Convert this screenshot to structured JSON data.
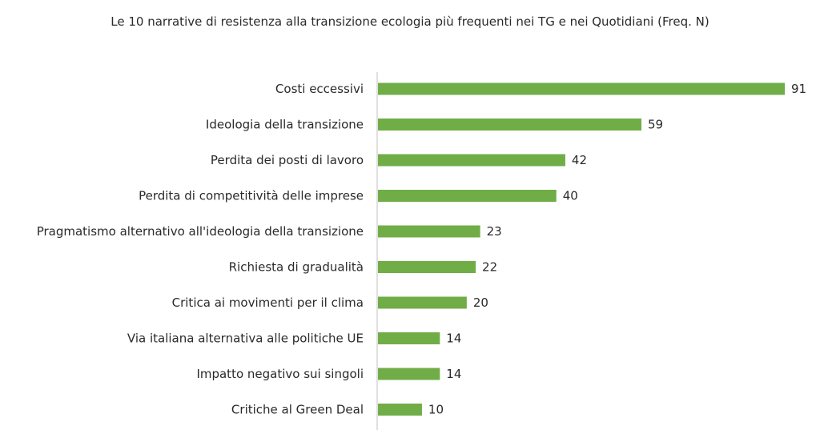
{
  "chart_data": {
    "type": "bar",
    "orientation": "horizontal",
    "title": "Le 10 narrative di resistenza alla transizione ecologia più frequenti nei TG e nei Quotidiani (Freq. N)",
    "categories": [
      "Costi eccessivi",
      "Ideologia della transizione",
      "Perdita dei posti di lavoro",
      "Perdita di competitività delle imprese",
      "Pragmatismo alternativo all'ideologia della transizione",
      "Richiesta di gradualità",
      "Critica ai movimenti per il clima",
      "Via italiana alternativa alle politiche UE",
      "Impatto negativo sui singoli",
      "Critiche al Green Deal"
    ],
    "values": [
      91,
      59,
      42,
      40,
      23,
      22,
      20,
      14,
      14,
      10
    ],
    "xlim": [
      0,
      91
    ],
    "grid": false,
    "legend": "none",
    "bar_color": "#70ad47",
    "axis_color": "#bfbfbf"
  }
}
